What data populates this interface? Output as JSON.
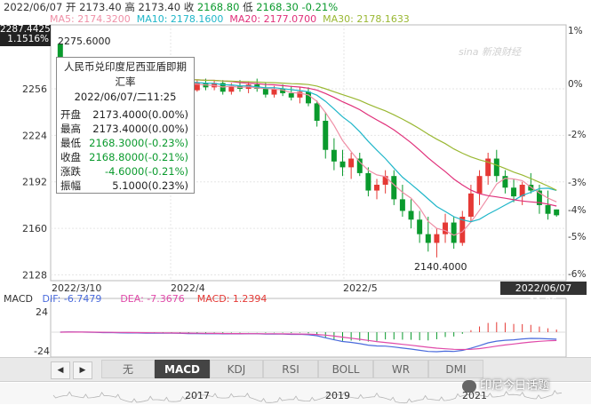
{
  "header": {
    "date": "2022/06/07",
    "open_label": "开",
    "open": "2173.40",
    "high_label": "高",
    "high": "2173.40",
    "close_label": "收",
    "close": "2168.80",
    "low_label": "低",
    "low": "2168.30",
    "change": "-0.21%"
  },
  "ma": {
    "ma5": "MA5: 2174.3200",
    "ma10": "MA10: 2178.1600",
    "ma20": "MA20: 2177.0700",
    "ma30": "MA30: 2178.1633"
  },
  "colors": {
    "ma5": "#ef8fa6",
    "ma10": "#1fb6c9",
    "ma20": "#e0307a",
    "ma30": "#9ab833",
    "up": "#e53935",
    "down": "#0a9a2d",
    "dif": "#4a6bdc",
    "dea": "#e04aa9",
    "macd": "#e53935"
  },
  "top_left_box": {
    "price": "2287.4425",
    "pct": "1.1516%"
  },
  "current_price_tag": "",
  "watermark": "sina 新浪财经",
  "tooltip": {
    "title1": "人民币兑印度尼西亚盾即期",
    "title2": "汇率",
    "datetime": "2022/06/07/二11:25",
    "rows": [
      {
        "k": "开盘",
        "v": "2173.4000(0.00%)",
        "color": "normal"
      },
      {
        "k": "最高",
        "v": "2173.4000(0.00%)",
        "color": "normal"
      },
      {
        "k": "最低",
        "v": "2168.3000(-0.23%)",
        "color": "green"
      },
      {
        "k": "收盘",
        "v": "2168.8000(-0.21%)",
        "color": "green"
      },
      {
        "k": "涨跌",
        "v": "-4.6000(-0.21%)",
        "color": "green"
      },
      {
        "k": "振幅",
        "v": "5.1000(0.23%)",
        "color": "normal"
      }
    ]
  },
  "annotations": {
    "high": "2275.6000",
    "low": "2140.4000"
  },
  "x_axis": {
    "labels": [
      "2022/3/10",
      "2022/4",
      "2022/5"
    ],
    "current": "2022/06/07 11:25"
  },
  "macd": {
    "label": "MACD",
    "dif": "DIF: -6.7479",
    "dea": "DEA: -7.3676",
    "macd": "MACD: 1.2394",
    "ticks": [
      "24",
      "-24"
    ]
  },
  "tabs": {
    "prev": "◀",
    "next": "▶",
    "items": [
      "无",
      "MACD",
      "KDJ",
      "RSI",
      "BOLL",
      "WR",
      "DMI"
    ],
    "active": "MACD"
  },
  "overview": {
    "years": [
      "2017",
      "2019",
      "2021"
    ]
  },
  "wechat_label": "印尼今日话题",
  "chart_data": {
    "type": "candlestick",
    "title": "人民币兑印度尼西亚盾即期汇率",
    "y_axis_left": {
      "ticks": [
        2128,
        2160,
        2192,
        2224,
        2256
      ],
      "range": [
        2124,
        2300
      ]
    },
    "y_axis_right": {
      "ticks": [
        "1%",
        "0%",
        "-2%",
        "-3%",
        "-4%",
        "-5%",
        "-6%"
      ]
    },
    "candles": [
      [
        2287,
        2287,
        2262,
        2266
      ],
      [
        2266,
        2276,
        2262,
        2270
      ],
      [
        2270,
        2272,
        2264,
        2266
      ],
      [
        2266,
        2270,
        2260,
        2263
      ],
      [
        2263,
        2268,
        2259,
        2265
      ],
      [
        2265,
        2267,
        2258,
        2260
      ],
      [
        2260,
        2266,
        2257,
        2264
      ],
      [
        2264,
        2266,
        2259,
        2261
      ],
      [
        2261,
        2265,
        2258,
        2262
      ],
      [
        2262,
        2266,
        2259,
        2263
      ],
      [
        2263,
        2265,
        2257,
        2259
      ],
      [
        2259,
        2264,
        2256,
        2262
      ],
      [
        2262,
        2265,
        2258,
        2260
      ],
      [
        2260,
        2264,
        2256,
        2262
      ],
      [
        2262,
        2266,
        2258,
        2259
      ],
      [
        2259,
        2263,
        2253,
        2255
      ],
      [
        2255,
        2262,
        2254,
        2260
      ],
      [
        2260,
        2263,
        2255,
        2257
      ],
      [
        2257,
        2262,
        2255,
        2260
      ],
      [
        2260,
        2262,
        2252,
        2254
      ],
      [
        2254,
        2260,
        2252,
        2258
      ],
      [
        2258,
        2262,
        2254,
        2256
      ],
      [
        2256,
        2261,
        2253,
        2259
      ],
      [
        2259,
        2263,
        2254,
        2256
      ],
      [
        2256,
        2260,
        2250,
        2252
      ],
      [
        2252,
        2258,
        2250,
        2256
      ],
      [
        2256,
        2259,
        2251,
        2253
      ],
      [
        2253,
        2258,
        2248,
        2250
      ],
      [
        2250,
        2257,
        2246,
        2254
      ],
      [
        2254,
        2257,
        2244,
        2246
      ],
      [
        2246,
        2248,
        2230,
        2234
      ],
      [
        2234,
        2240,
        2208,
        2214
      ],
      [
        2214,
        2222,
        2200,
        2206
      ],
      [
        2206,
        2214,
        2196,
        2202
      ],
      [
        2202,
        2212,
        2194,
        2208
      ],
      [
        2208,
        2212,
        2196,
        2198
      ],
      [
        2198,
        2202,
        2182,
        2186
      ],
      [
        2186,
        2194,
        2180,
        2190
      ],
      [
        2190,
        2200,
        2184,
        2196
      ],
      [
        2196,
        2200,
        2176,
        2180
      ],
      [
        2180,
        2190,
        2168,
        2172
      ],
      [
        2172,
        2180,
        2160,
        2166
      ],
      [
        2166,
        2172,
        2150,
        2156
      ],
      [
        2156,
        2168,
        2144,
        2150
      ],
      [
        2150,
        2160,
        2140,
        2156
      ],
      [
        2156,
        2170,
        2150,
        2164
      ],
      [
        2164,
        2168,
        2146,
        2150
      ],
      [
        2150,
        2172,
        2148,
        2168
      ],
      [
        2168,
        2190,
        2164,
        2184
      ],
      [
        2184,
        2200,
        2176,
        2196
      ],
      [
        2196,
        2212,
        2190,
        2208
      ],
      [
        2208,
        2214,
        2192,
        2196
      ],
      [
        2196,
        2200,
        2184,
        2188
      ],
      [
        2188,
        2194,
        2178,
        2182
      ],
      [
        2182,
        2192,
        2176,
        2190
      ],
      [
        2190,
        2198,
        2184,
        2186
      ],
      [
        2186,
        2190,
        2170,
        2176
      ],
      [
        2176,
        2186,
        2166,
        2170
      ],
      [
        2173,
        2173,
        2168,
        2169
      ]
    ],
    "ma5_color": "#ef8fa6",
    "ma10_color": "#1fb6c9",
    "ma20_color": "#e0307a",
    "ma30_color": "#9ab833"
  }
}
